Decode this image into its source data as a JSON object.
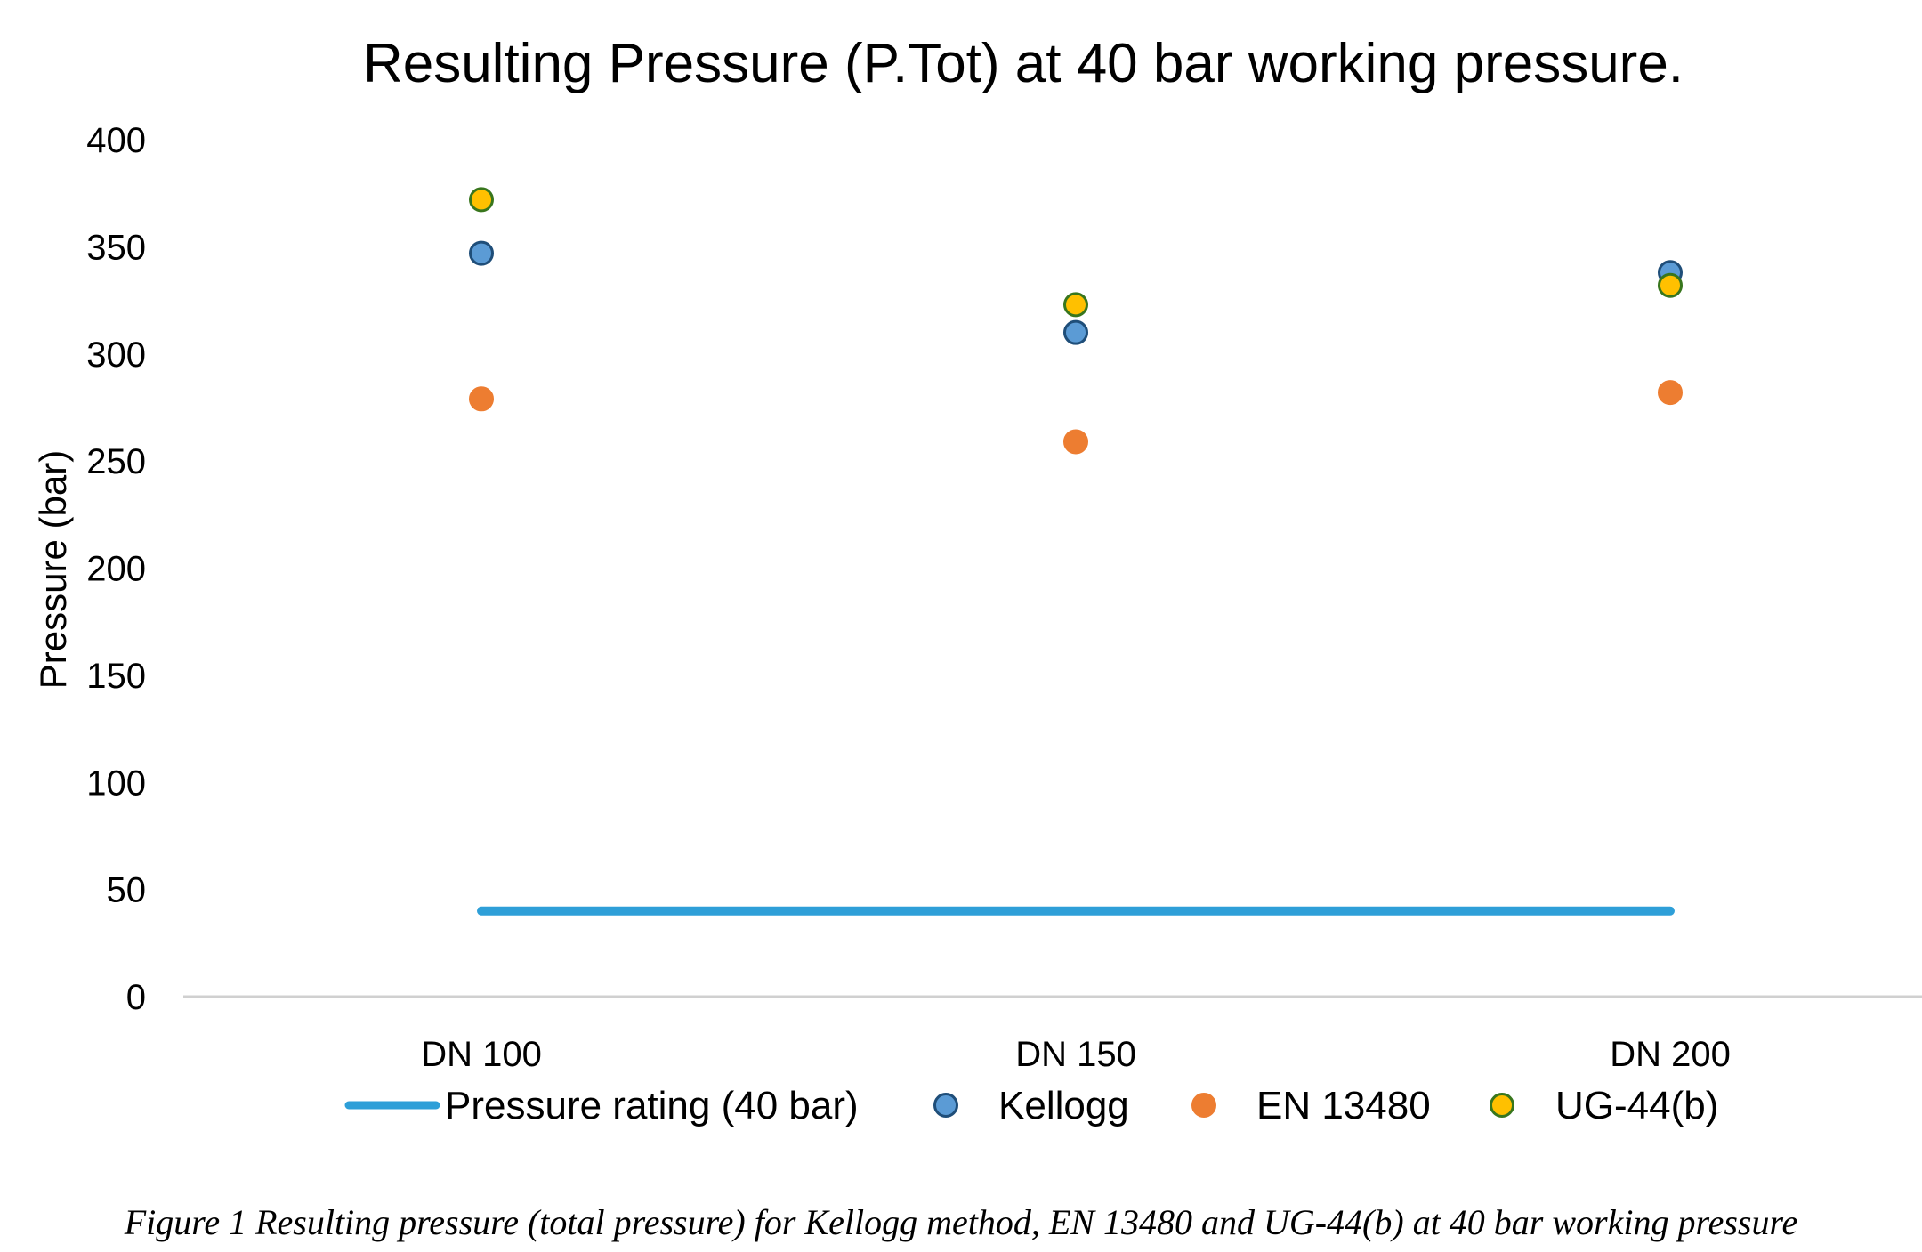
{
  "chart_data": {
    "type": "scatter",
    "title": "Resulting Pressure (P.Tot) at 40 bar working pressure.",
    "ylabel": "Pressure (bar)",
    "xlabel": "",
    "categories": [
      "DN 100",
      "DN 150",
      "DN 200"
    ],
    "ylim": [
      0,
      400
    ],
    "yticks": [
      0,
      50,
      100,
      150,
      200,
      250,
      300,
      350,
      400
    ],
    "grid": false,
    "legend_position": "bottom",
    "series": [
      {
        "name": "Pressure rating (40 bar)",
        "kind": "line",
        "color": "#2e9fd8",
        "values": [
          40,
          40,
          40
        ]
      },
      {
        "name": "Kellogg",
        "kind": "marker",
        "color": "#5b9bd5",
        "edge": "#1f4e79",
        "values": [
          347,
          310,
          338
        ]
      },
      {
        "name": "EN 13480",
        "kind": "marker",
        "color": "#ed7d31",
        "edge": "#ed7d31",
        "values": [
          279,
          259,
          282
        ]
      },
      {
        "name": "UG-44(b)",
        "kind": "marker",
        "color": "#ffc000",
        "edge": "#38761d",
        "values": [
          372,
          323,
          332
        ]
      }
    ]
  },
  "caption": "Figure 1 Resulting pressure (total pressure) for Kellogg method, EN 13480 and UG-44(b) at 40 bar working pressure"
}
